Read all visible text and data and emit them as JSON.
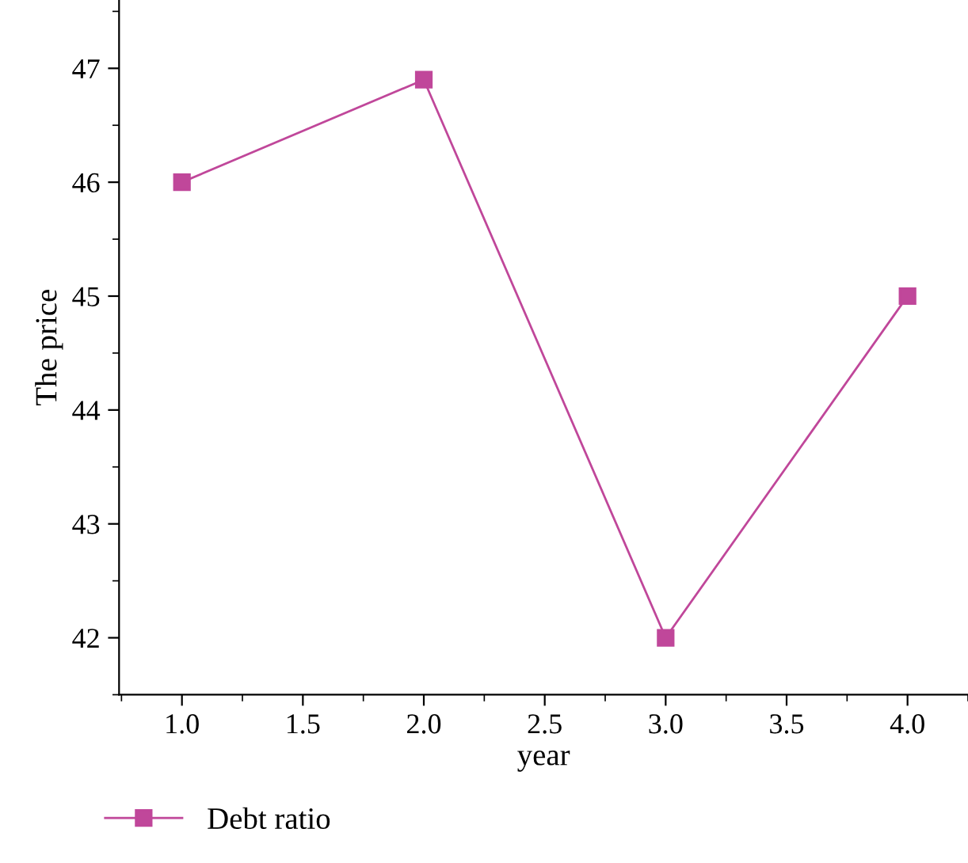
{
  "chart_data": {
    "type": "line",
    "xlabel": "year",
    "ylabel": "The price",
    "x": [
      1.0,
      2.0,
      3.0,
      4.0
    ],
    "series": [
      {
        "name": "Debt ratio",
        "color": "#c0479a",
        "values": [
          46.0,
          46.9,
          42.0,
          45.0
        ]
      }
    ],
    "xlim": [
      0.74,
      4.25
    ],
    "ylim": [
      41.5,
      47.6
    ],
    "xticks": [
      {
        "value": 1.0,
        "label": "1.0"
      },
      {
        "value": 1.5,
        "label": "1.5"
      },
      {
        "value": 2.0,
        "label": "2.0"
      },
      {
        "value": 2.5,
        "label": "2.5"
      },
      {
        "value": 3.0,
        "label": "3.0"
      },
      {
        "value": 3.5,
        "label": "3.5"
      },
      {
        "value": 4.0,
        "label": "4.0"
      }
    ],
    "yticks": [
      42,
      43,
      44,
      45,
      46,
      47
    ],
    "marker": "square",
    "line_style": "solid",
    "legend": "bottom left",
    "grid": false
  }
}
